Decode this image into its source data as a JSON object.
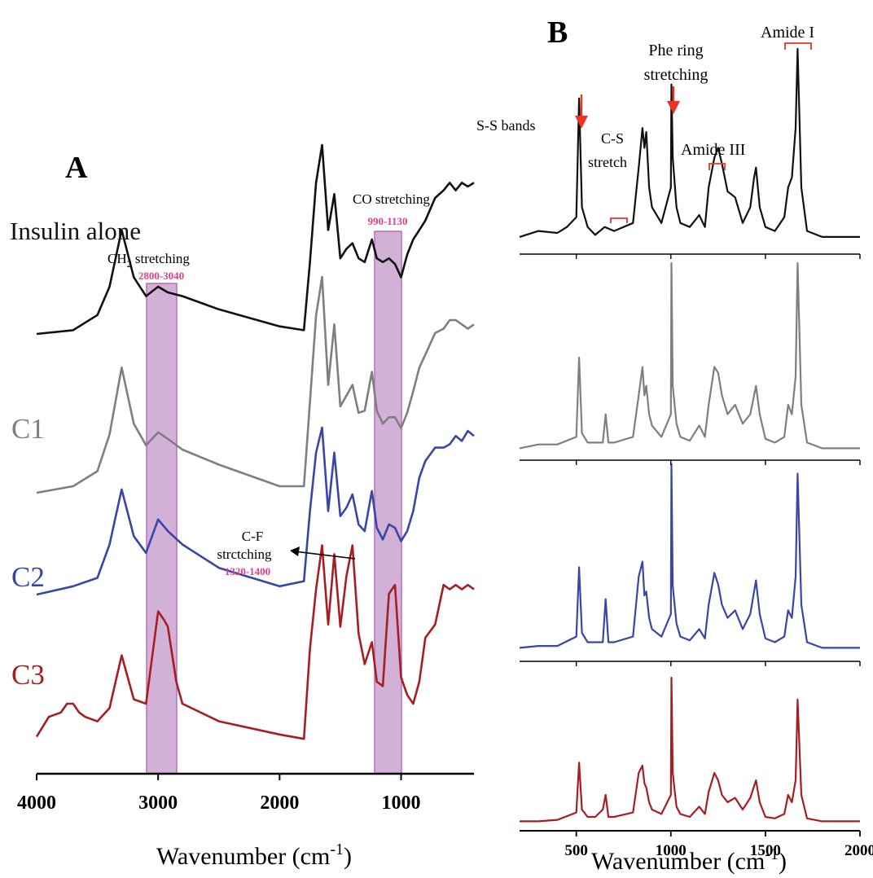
{
  "panel_a": {
    "letter": "A",
    "xlabel_main": "Wavenumber (cm",
    "xlabel_sup": "-1",
    "xlabel_close": ")",
    "ticks": [
      "4000",
      "3000",
      "2000",
      "1000"
    ],
    "labels": {
      "insulin": "Insulin alone",
      "c1": "C1",
      "c2": "C2",
      "c3": "C3"
    },
    "annotations": {
      "ch2_prefix": "CH",
      "ch2_sub": "2",
      "ch2_suffix": " stretching",
      "ch2_range": "2800-3040",
      "co": "CO stretching",
      "co_range": "990-1130",
      "cf_line1": "C-F",
      "cf_line2": "strctching",
      "cf_range": "1320-1400"
    }
  },
  "panel_b": {
    "letter": "B",
    "xlabel_main": "Wavenumber (cm",
    "xlabel_sup": "-1",
    "xlabel_close": ")",
    "ticks": [
      "500",
      "1000",
      "1500",
      "2000"
    ],
    "annotations": {
      "ss": "S-S bands",
      "cs_line1": "C-S",
      "cs_line2": "stretch",
      "phe_line1": "Phe ring",
      "phe_line2": "stretching",
      "amide3": "Amide III",
      "amide1": "Amide I"
    }
  },
  "colors": {
    "insulin": "#111111",
    "c1": "#7f7f7f",
    "c2": "#3a45a8",
    "c3": "#a61e22",
    "highlight_fill": "#c9a3cf",
    "highlight_stroke": "#c06ac0",
    "range_text": "#e0408a",
    "arrow_red": "#ee3224"
  },
  "chart_data": [
    {
      "type": "line",
      "title": "",
      "xlabel": "Wavenumber (cm-1)",
      "ylabel": "",
      "xlim": [
        4000,
        400
      ],
      "highlight_ranges": [
        [
          3120,
          2850
        ],
        [
          1220,
          990
        ]
      ],
      "series": [
        {
          "name": "Insulin alone",
          "x": [
            4000,
            3700,
            3500,
            3400,
            3300,
            3200,
            3100,
            3000,
            2920,
            2800,
            2500,
            2000,
            1800,
            1750,
            1700,
            1650,
            1600,
            1550,
            1500,
            1450,
            1400,
            1350,
            1300,
            1240,
            1200,
            1150,
            1100,
            1050,
            1000,
            950,
            900,
            850,
            800,
            720,
            650,
            600,
            550,
            500,
            450,
            400
          ],
          "y": [
            0.0,
            0.02,
            0.1,
            0.25,
            0.55,
            0.3,
            0.2,
            0.25,
            0.22,
            0.2,
            0.13,
            0.04,
            0.02,
            0.38,
            0.8,
            1.0,
            0.55,
            0.74,
            0.4,
            0.45,
            0.48,
            0.4,
            0.38,
            0.5,
            0.4,
            0.38,
            0.4,
            0.37,
            0.3,
            0.42,
            0.5,
            0.55,
            0.6,
            0.72,
            0.76,
            0.8,
            0.76,
            0.8,
            0.78,
            0.8
          ]
        },
        {
          "name": "C1",
          "x": [
            4000,
            3700,
            3500,
            3400,
            3300,
            3200,
            3100,
            3000,
            2920,
            2800,
            2500,
            2000,
            1800,
            1750,
            1700,
            1650,
            1600,
            1550,
            1500,
            1450,
            1400,
            1350,
            1300,
            1240,
            1200,
            1150,
            1100,
            1050,
            1000,
            950,
            900,
            850,
            800,
            720,
            650,
            600,
            550,
            500,
            450,
            400
          ],
          "y": [
            0.0,
            0.03,
            0.1,
            0.27,
            0.58,
            0.32,
            0.22,
            0.28,
            0.25,
            0.2,
            0.13,
            0.03,
            0.03,
            0.42,
            0.82,
            1.0,
            0.5,
            0.78,
            0.4,
            0.45,
            0.5,
            0.37,
            0.38,
            0.56,
            0.38,
            0.32,
            0.35,
            0.35,
            0.3,
            0.37,
            0.47,
            0.58,
            0.64,
            0.74,
            0.76,
            0.8,
            0.8,
            0.78,
            0.76,
            0.78
          ]
        },
        {
          "name": "C2",
          "x": [
            4000,
            3700,
            3500,
            3400,
            3300,
            3200,
            3100,
            3000,
            2920,
            2800,
            2500,
            2000,
            1800,
            1750,
            1700,
            1650,
            1600,
            1550,
            1500,
            1450,
            1400,
            1350,
            1300,
            1240,
            1200,
            1150,
            1100,
            1050,
            1000,
            950,
            900,
            850,
            800,
            720,
            650,
            600,
            550,
            500,
            450,
            400
          ],
          "y": [
            0.0,
            0.05,
            0.1,
            0.3,
            0.63,
            0.35,
            0.25,
            0.45,
            0.38,
            0.3,
            0.16,
            0.05,
            0.08,
            0.5,
            0.85,
            1.0,
            0.5,
            0.85,
            0.47,
            0.52,
            0.6,
            0.42,
            0.38,
            0.62,
            0.4,
            0.33,
            0.42,
            0.4,
            0.32,
            0.38,
            0.5,
            0.7,
            0.8,
            0.88,
            0.88,
            0.9,
            0.95,
            0.92,
            0.98,
            0.95
          ]
        },
        {
          "name": "C3",
          "x": [
            4000,
            3900,
            3800,
            3750,
            3700,
            3650,
            3600,
            3500,
            3400,
            3300,
            3200,
            3100,
            3000,
            2950,
            2920,
            2850,
            2800,
            2500,
            2000,
            1800,
            1750,
            1700,
            1650,
            1600,
            1550,
            1500,
            1450,
            1400,
            1350,
            1300,
            1240,
            1200,
            1150,
            1100,
            1050,
            1000,
            950,
            900,
            850,
            800,
            720,
            650,
            600,
            550,
            500,
            450,
            400
          ],
          "y": [
            0.05,
            0.14,
            0.16,
            0.2,
            0.2,
            0.16,
            0.14,
            0.12,
            0.18,
            0.42,
            0.22,
            0.2,
            0.62,
            0.58,
            0.55,
            0.3,
            0.2,
            0.12,
            0.06,
            0.04,
            0.45,
            0.72,
            0.92,
            0.56,
            0.88,
            0.55,
            0.78,
            0.92,
            0.52,
            0.38,
            0.48,
            0.3,
            0.28,
            0.7,
            0.74,
            0.32,
            0.24,
            0.2,
            0.3,
            0.5,
            0.56,
            0.74,
            0.72,
            0.74,
            0.72,
            0.74,
            0.72
          ]
        }
      ]
    },
    {
      "type": "line",
      "title": "",
      "xlabel": "Wavenumber (cm-1)",
      "ylabel": "",
      "xlim": [
        200,
        2000
      ],
      "series": [
        {
          "name": "Insulin alone",
          "x": [
            200,
            300,
            400,
            450,
            500,
            515,
            530,
            560,
            600,
            650,
            700,
            750,
            800,
            830,
            850,
            860,
            870,
            885,
            900,
            950,
            1000,
            1003,
            1010,
            1030,
            1050,
            1100,
            1150,
            1180,
            1200,
            1230,
            1250,
            1270,
            1300,
            1340,
            1380,
            1420,
            1440,
            1450,
            1470,
            1500,
            1550,
            1600,
            1620,
            1640,
            1660,
            1670,
            1690,
            1720,
            1800,
            1900,
            2000
          ],
          "y": [
            0.05,
            0.08,
            0.07,
            0.1,
            0.15,
            0.75,
            0.2,
            0.1,
            0.06,
            0.1,
            0.08,
            0.1,
            0.12,
            0.4,
            0.6,
            0.5,
            0.58,
            0.3,
            0.2,
            0.12,
            0.3,
            0.82,
            0.45,
            0.2,
            0.12,
            0.1,
            0.16,
            0.1,
            0.3,
            0.45,
            0.5,
            0.42,
            0.28,
            0.25,
            0.12,
            0.2,
            0.35,
            0.4,
            0.2,
            0.1,
            0.08,
            0.15,
            0.3,
            0.35,
            0.6,
            1.0,
            0.3,
            0.08,
            0.05,
            0.05,
            0.05
          ]
        },
        {
          "name": "C1",
          "x": [
            200,
            300,
            400,
            500,
            515,
            530,
            560,
            600,
            640,
            655,
            670,
            700,
            800,
            830,
            850,
            860,
            870,
            885,
            900,
            950,
            1000,
            1003,
            1010,
            1030,
            1050,
            1100,
            1150,
            1180,
            1200,
            1230,
            1250,
            1270,
            1300,
            1340,
            1380,
            1420,
            1450,
            1470,
            1500,
            1550,
            1600,
            1620,
            1640,
            1660,
            1670,
            1690,
            1720,
            1800,
            1900,
            2000
          ],
          "y": [
            0.02,
            0.04,
            0.04,
            0.08,
            0.5,
            0.1,
            0.05,
            0.05,
            0.05,
            0.2,
            0.05,
            0.05,
            0.08,
            0.3,
            0.45,
            0.3,
            0.35,
            0.2,
            0.14,
            0.08,
            0.2,
            1.0,
            0.35,
            0.15,
            0.08,
            0.06,
            0.14,
            0.08,
            0.25,
            0.45,
            0.42,
            0.3,
            0.2,
            0.25,
            0.15,
            0.2,
            0.35,
            0.2,
            0.07,
            0.05,
            0.08,
            0.25,
            0.2,
            0.4,
            1.0,
            0.25,
            0.05,
            0.02,
            0.02,
            0.02
          ]
        },
        {
          "name": "C2",
          "x": [
            200,
            300,
            400,
            500,
            515,
            530,
            560,
            600,
            640,
            655,
            670,
            700,
            800,
            830,
            850,
            860,
            870,
            885,
            900,
            950,
            1000,
            1003,
            1010,
            1030,
            1050,
            1100,
            1150,
            1180,
            1200,
            1230,
            1250,
            1270,
            1300,
            1340,
            1380,
            1420,
            1450,
            1470,
            1500,
            1550,
            1600,
            1620,
            1640,
            1660,
            1670,
            1690,
            1720,
            1800,
            1900,
            2000
          ],
          "y": [
            0.02,
            0.03,
            0.03,
            0.08,
            0.45,
            0.1,
            0.05,
            0.05,
            0.05,
            0.28,
            0.05,
            0.05,
            0.08,
            0.4,
            0.48,
            0.3,
            0.32,
            0.18,
            0.12,
            0.08,
            0.2,
            1.0,
            0.35,
            0.15,
            0.08,
            0.06,
            0.12,
            0.07,
            0.25,
            0.42,
            0.36,
            0.25,
            0.18,
            0.22,
            0.12,
            0.2,
            0.38,
            0.2,
            0.07,
            0.05,
            0.08,
            0.22,
            0.18,
            0.4,
            0.95,
            0.25,
            0.05,
            0.02,
            0.02,
            0.02
          ]
        },
        {
          "name": "C3",
          "x": [
            200,
            300,
            400,
            500,
            515,
            530,
            560,
            600,
            640,
            655,
            670,
            700,
            800,
            830,
            850,
            860,
            870,
            885,
            900,
            950,
            1000,
            1003,
            1010,
            1030,
            1050,
            1100,
            1150,
            1180,
            1200,
            1230,
            1250,
            1270,
            1300,
            1340,
            1380,
            1420,
            1450,
            1470,
            1500,
            1550,
            1600,
            1620,
            1640,
            1660,
            1670,
            1690,
            1720,
            1800,
            1900,
            2000
          ],
          "y": [
            0.02,
            0.02,
            0.03,
            0.08,
            0.42,
            0.1,
            0.05,
            0.05,
            0.1,
            0.2,
            0.05,
            0.05,
            0.08,
            0.35,
            0.4,
            0.28,
            0.25,
            0.15,
            0.1,
            0.07,
            0.2,
            1.0,
            0.35,
            0.12,
            0.07,
            0.05,
            0.12,
            0.07,
            0.22,
            0.35,
            0.3,
            0.2,
            0.15,
            0.18,
            0.1,
            0.18,
            0.3,
            0.15,
            0.05,
            0.04,
            0.07,
            0.2,
            0.15,
            0.3,
            0.85,
            0.2,
            0.04,
            0.02,
            0.02,
            0.02
          ]
        }
      ]
    }
  ]
}
